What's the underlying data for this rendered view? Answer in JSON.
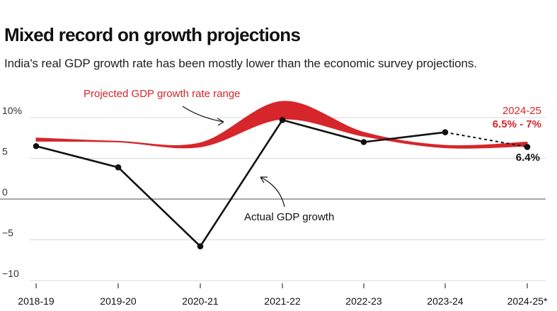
{
  "header": {
    "title": "Mixed record on growth projections",
    "subtitle": "India's real GDP growth rate has been mostly lower than the economic survey projections."
  },
  "colors": {
    "projection": "#d6262b",
    "actual": "#111111",
    "grid": "#d9d9d9",
    "zero_line": "#8c8c8c"
  },
  "chart_data": {
    "type": "line",
    "categories": [
      "2018-19",
      "2019-20",
      "2020-21",
      "2021-22",
      "2022-23",
      "2023-24",
      "2024-25*"
    ],
    "yticks": [
      {
        "value": 10,
        "label": "10%"
      },
      {
        "value": 5,
        "label": "5"
      },
      {
        "value": 0,
        "label": "0"
      },
      {
        "value": -5,
        "label": "−5"
      },
      {
        "value": -10,
        "label": "−10"
      }
    ],
    "ylim": [
      -11,
      12
    ],
    "grid": true,
    "projected_band": {
      "low": [
        7.1,
        7.0,
        6.4,
        9.8,
        7.7,
        6.3,
        6.5
      ],
      "high": [
        7.5,
        7.1,
        6.9,
        12.0,
        8.2,
        6.6,
        7.0
      ]
    },
    "actual": [
      6.5,
      3.9,
      -5.8,
      9.7,
      7.0,
      8.2,
      6.4
    ],
    "annotations": {
      "projected_label": "Projected GDP growth rate range",
      "actual_label": "Actual GDP growth",
      "latest_year": "2024-25",
      "latest_range": "6.5% - 7%",
      "latest_actual": "6.4%"
    }
  }
}
